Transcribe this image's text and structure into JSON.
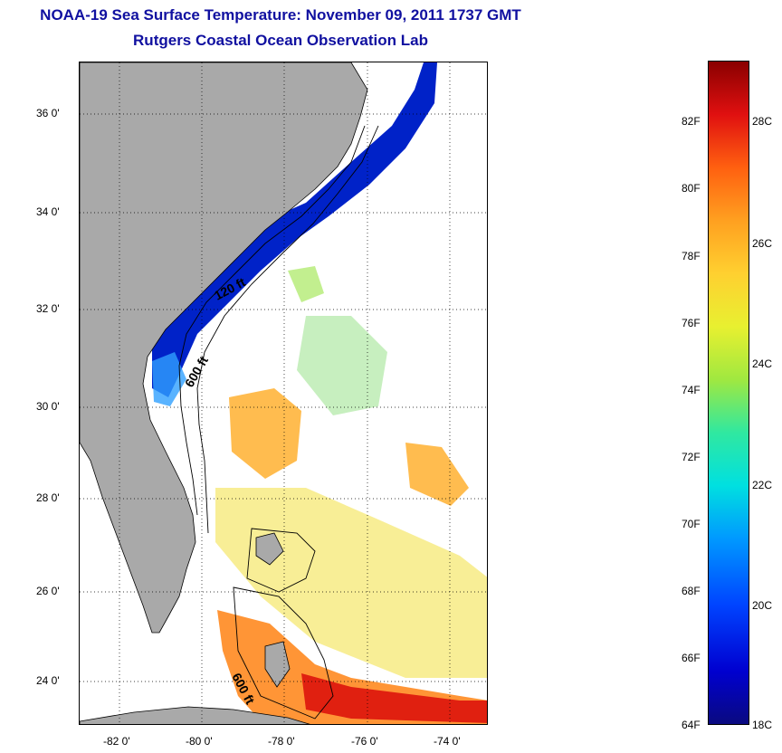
{
  "title": "NOAA-19 Sea Surface Temperature:  November 09, 2011 1737 GMT",
  "subtitle": "Rutgers Coastal Ocean Observation Lab",
  "lat_ticks": [
    "36 0'",
    "34 0'",
    "32 0'",
    "30 0'",
    "28 0'",
    "26 0'",
    "24 0'"
  ],
  "lon_ticks": [
    "-82 0'",
    "-80 0'",
    "-78 0'",
    "-76 0'",
    "-74 0'"
  ],
  "contours": {
    "c120": "120 ft",
    "c600a": "600 ft",
    "c600b": "600 ft"
  },
  "colorbar": {
    "f_labels": [
      "82F",
      "80F",
      "78F",
      "76F",
      "74F",
      "72F",
      "70F",
      "68F",
      "66F",
      "64F"
    ],
    "c_labels": [
      "28C",
      "26C",
      "24C",
      "22C",
      "20C",
      "18C"
    ],
    "min_c": 18,
    "max_c": 29
  },
  "colors": {
    "land": "#a9a9a9",
    "title": "#1010a0"
  }
}
